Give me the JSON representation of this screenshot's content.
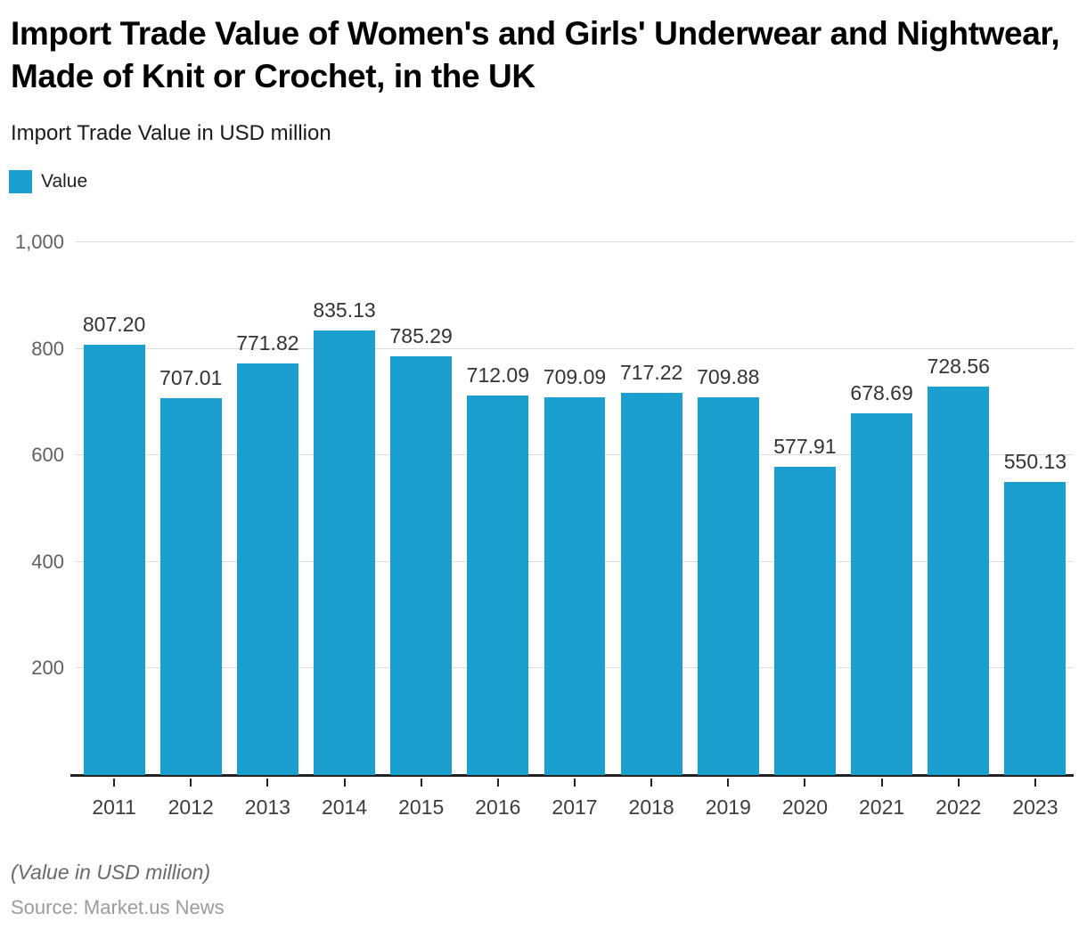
{
  "header": {
    "title": "Import Trade Value of Women's and Girls' Underwear and Nightwear, Made of Knit or Crochet, in the UK",
    "subtitle": "Import Trade Value in USD million"
  },
  "legend": {
    "items": [
      {
        "label": "Value",
        "color": "#1A9FCF"
      }
    ]
  },
  "chart_data": {
    "type": "bar",
    "title": "Import Trade Value of Women's and Girls' Underwear and Nightwear, Made of Knit or Crochet, in the UK",
    "subtitle": "Import Trade Value in USD million",
    "xlabel": "",
    "ylabel": "",
    "categories": [
      "2011",
      "2012",
      "2013",
      "2014",
      "2015",
      "2016",
      "2017",
      "2018",
      "2019",
      "2020",
      "2021",
      "2022",
      "2023"
    ],
    "series": [
      {
        "name": "Value",
        "color": "#1A9FCF",
        "values": [
          807.2,
          707.01,
          771.82,
          835.13,
          785.29,
          712.09,
          709.09,
          717.22,
          709.88,
          577.91,
          678.69,
          728.56,
          550.13
        ],
        "value_labels": [
          "807.20",
          "707.01",
          "771.82",
          "835.13",
          "785.29",
          "712.09",
          "709.09",
          "717.22",
          "709.88",
          "577.91",
          "678.69",
          "728.56",
          "550.13"
        ]
      }
    ],
    "ylim": [
      0,
      1000
    ],
    "yticks": [
      {
        "value": 200,
        "label": "200"
      },
      {
        "value": 400,
        "label": "400"
      },
      {
        "value": 600,
        "label": "600"
      },
      {
        "value": 800,
        "label": "800"
      },
      {
        "value": 1000,
        "label": "1,000"
      }
    ],
    "grid": true,
    "legend_position": "top-left"
  },
  "colors": {
    "bar": "#1A9FCF",
    "gridline": "#DBDBDB",
    "axis_line": "#222222",
    "tick": "#222222"
  },
  "footer": {
    "note": "(Value in USD million)",
    "source": "Source: Market.us News"
  }
}
